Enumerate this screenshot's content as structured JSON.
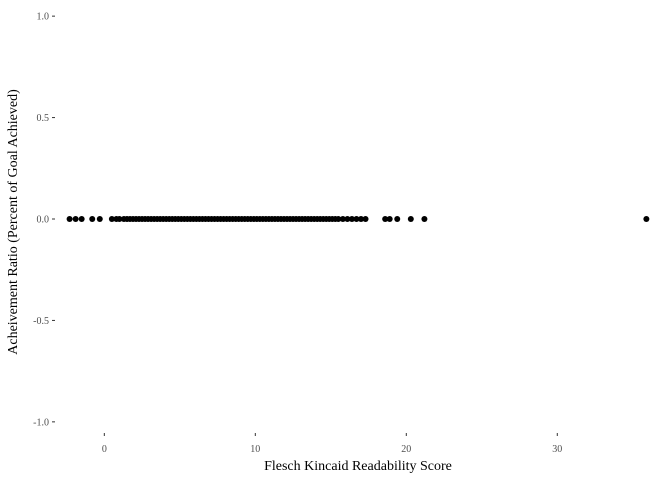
{
  "chart_data": {
    "type": "scatter",
    "title": "",
    "xlabel": "Flesch Kincaid Readability Score",
    "ylabel": "Acheivement Ratio (Percent of Goal Achieved)",
    "xlim": [
      -3.2,
      37.2
    ],
    "ylim": [
      -1.05,
      1.05
    ],
    "x_ticks": [
      0,
      10,
      20,
      30
    ],
    "x_tick_labels": [
      "0",
      "10",
      "20",
      "30"
    ],
    "y_ticks": [
      1.0,
      0.5,
      0.0,
      -0.5,
      -1.0
    ],
    "y_tick_labels": [
      "1.0",
      "0.5",
      "0.0",
      "-0.5",
      "-1.0"
    ],
    "grid": false,
    "point_color": "#000000",
    "series": [
      {
        "x": [
          -2.3,
          -1.9,
          -1.5,
          -0.8,
          -0.3,
          0.5,
          0.8,
          1.0,
          1.3,
          1.5,
          1.7,
          1.9,
          2.1,
          2.3,
          2.5,
          2.7,
          2.9,
          3.1,
          3.3,
          3.5,
          3.7,
          3.9,
          4.1,
          4.3,
          4.5,
          4.7,
          4.9,
          5.1,
          5.3,
          5.5,
          5.7,
          5.9,
          6.1,
          6.3,
          6.5,
          6.7,
          6.9,
          7.1,
          7.3,
          7.5,
          7.7,
          7.9,
          8.1,
          8.3,
          8.5,
          8.7,
          8.9,
          9.1,
          9.3,
          9.5,
          9.7,
          9.9,
          10.1,
          10.3,
          10.5,
          10.7,
          10.9,
          11.1,
          11.3,
          11.5,
          11.7,
          11.9,
          12.1,
          12.3,
          12.5,
          12.7,
          12.9,
          13.1,
          13.3,
          13.5,
          13.7,
          13.9,
          14.1,
          14.3,
          14.5,
          14.7,
          14.9,
          15.1,
          15.3,
          15.5,
          15.8,
          16.1,
          16.4,
          16.7,
          17.0,
          17.3,
          18.6,
          18.9,
          19.4,
          20.3,
          21.2,
          35.9
        ],
        "y": [
          0,
          0,
          0,
          0,
          0,
          0,
          0,
          0,
          0,
          0,
          0,
          0,
          0,
          0,
          0,
          0,
          0,
          0,
          0,
          0,
          0,
          0,
          0,
          0,
          0,
          0,
          0,
          0,
          0,
          0,
          0,
          0,
          0,
          0,
          0,
          0,
          0,
          0,
          0,
          0,
          0,
          0,
          0,
          0,
          0,
          0,
          0,
          0,
          0,
          0,
          0,
          0,
          0,
          0,
          0,
          0,
          0,
          0,
          0,
          0,
          0,
          0,
          0,
          0,
          0,
          0,
          0,
          0,
          0,
          0,
          0,
          0,
          0,
          0,
          0,
          0,
          0,
          0,
          0,
          0,
          0,
          0,
          0,
          0,
          0,
          0,
          0,
          0,
          0,
          0,
          0,
          0
        ]
      }
    ]
  }
}
